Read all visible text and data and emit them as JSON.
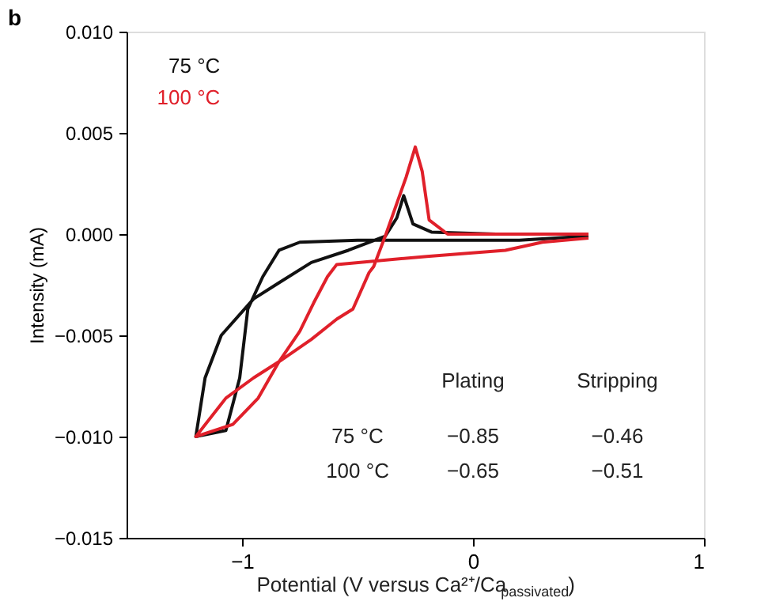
{
  "chart_data": {
    "type": "line",
    "title": "b",
    "xlabel": "Potential (V versus Ca²⁺/Ca$_{passivated}$)",
    "ylabel": "Intensity (mA)",
    "xlim": [
      -1.5,
      1
    ],
    "ylim": [
      -0.015,
      0.01
    ],
    "xticks": [
      {
        "value": -1,
        "label": "−1"
      },
      0,
      1
    ],
    "yticks": [
      {
        "value": 0.01,
        "label": "0.010"
      },
      {
        "value": 0.005,
        "label": "0.005"
      },
      {
        "value": 0,
        "label": "0.000"
      },
      {
        "value": -0.005,
        "label": "−0.005"
      },
      {
        "value": -0.01,
        "label": "−0.010"
      },
      {
        "value": -0.015,
        "label": "−0.015"
      }
    ],
    "grid": false,
    "legend": "top left",
    "marker": "none",
    "line_style": "solid",
    "series": [
      {
        "name": "75 °C",
        "color": "#111111",
        "x": [
          0.5,
          0.2,
          -0.2,
          -0.5,
          -0.75,
          -0.84,
          -0.91,
          -0.975,
          -1.01,
          -1.07,
          -1.2,
          -1.16,
          -1.09,
          -0.95,
          -0.84,
          -0.7,
          -0.54,
          -0.38,
          -0.33,
          -0.3,
          -0.26,
          -0.18,
          0.1,
          0.5
        ],
        "values": [
          -0.0001,
          -0.0003,
          -0.0003,
          -0.0003,
          -0.0004,
          -0.0008,
          -0.0021,
          -0.0037,
          -0.0071,
          -0.0097,
          -0.01,
          -0.0071,
          -0.005,
          -0.0032,
          -0.0024,
          -0.0014,
          -0.0008,
          -0.0001,
          0.0008,
          0.0019,
          0.0005,
          0.0001,
          0.0,
          0.0
        ]
      },
      {
        "name": "100 °C",
        "color": "#e0202a",
        "x": [
          0.5,
          0.3,
          0.14,
          -0.2,
          -0.59,
          -0.63,
          -0.69,
          -0.75,
          -0.84,
          -0.93,
          -1.04,
          -1.2,
          -1.07,
          -0.95,
          -0.84,
          -0.7,
          -0.59,
          -0.52,
          -0.45,
          -0.43,
          -0.38,
          -0.29,
          -0.25,
          -0.22,
          -0.19,
          -0.11,
          0.2,
          0.5
        ],
        "values": [
          -0.0002,
          -0.0004,
          -0.0008,
          -0.0011,
          -0.0015,
          -0.0021,
          -0.0034,
          -0.0048,
          -0.0063,
          -0.0081,
          -0.0094,
          -0.01,
          -0.0081,
          -0.0071,
          -0.0063,
          -0.0052,
          -0.0042,
          -0.0037,
          -0.0019,
          -0.0016,
          -0.0001,
          0.0028,
          0.0043,
          0.0031,
          0.0007,
          0.0,
          0.0,
          0.0
        ]
      }
    ],
    "annotations": [
      "Plating",
      "Stripping",
      "75 °C",
      "−0.85",
      "−0.46",
      "100 °C",
      "−0.65",
      "−0.51"
    ]
  }
}
